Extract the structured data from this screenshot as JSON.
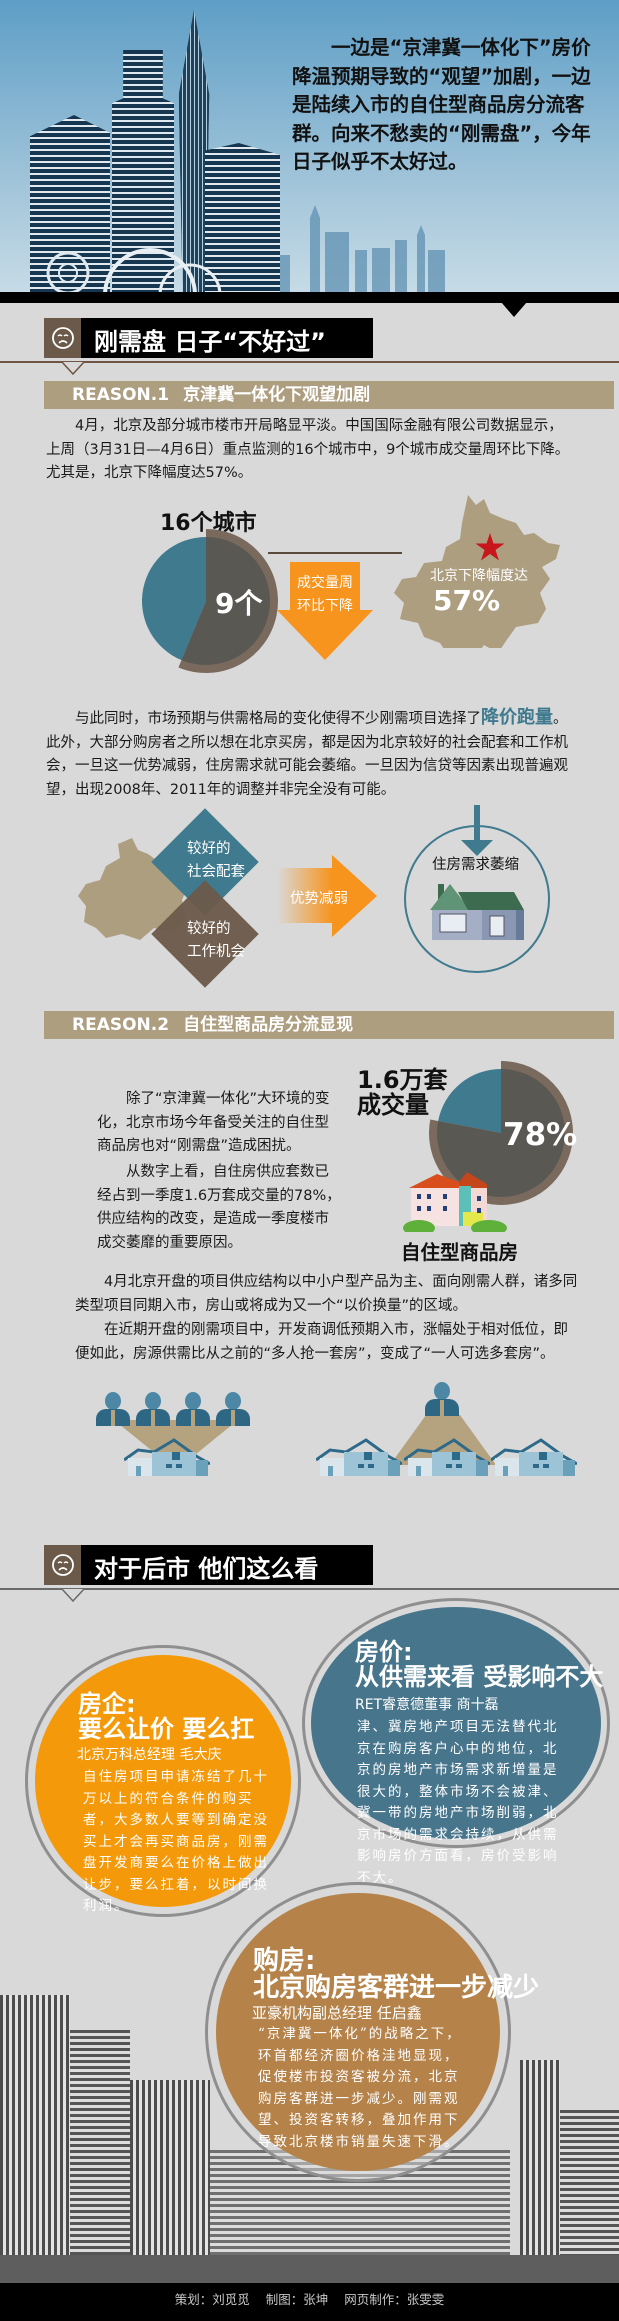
{
  "header": {
    "intro": "一边是“京津冀一体化下”房价降温预期导致的“观望”加剧，一边是陆续入市的自住型商品房分流客群。向来不愁卖的“刚需盘”，今年日子似乎不太好过。"
  },
  "section1": {
    "title": "刚需盘 日子“不好过”",
    "icon": "sad-face-icon"
  },
  "reason1": {
    "label": "REASON.1",
    "title": "京津冀一体化下观望加剧",
    "paragraph": "4月，北京及部分城市楼市开局略显平淡。中国国际金融有限公司数据显示，上周（3月31日—4月6日）重点监测的16个城市中，9个城市成交量周环比下降。尤其是，北京下降幅度达57%。",
    "pie": {
      "title": "16个城市",
      "label": "9个",
      "value": 9,
      "total": 16
    },
    "arrow_text": [
      "成交量周",
      "环比下降"
    ],
    "map": {
      "label": "北京下降幅度达",
      "value": "57%"
    },
    "paragraph2": {
      "before": "与此同时，市场预期与供需格局的变化使得不少刚需项目选择了",
      "highlight": "降价跑量",
      "after": "。此外，大部分购房者之所以想在北京买房，都是因为北京较好的社会配套和工作机会，一旦这一优势减弱，住房需求就可能会萎缩。一旦因为信贷等因素出现普遍观望，出现2008年、2011年的调整并非完全没有可能。"
    },
    "diagram": {
      "diamond1": [
        "较好的",
        "社会配套"
      ],
      "diamond2": [
        "较好的",
        "工作机会"
      ],
      "arrow": "优势减弱",
      "result": "住房需求萎缩"
    }
  },
  "reason2": {
    "label": "REASON.2",
    "title": "自住型商品房分流显现",
    "paragraph_a": "除了“京津冀一体化”大环境的变化，北京市场今年备受关注的自住型商品房也对“刚需盘”造成困扰。",
    "paragraph_b": "从数字上看，自住房供应套数已经占到一季度1.6万套成交量的78%，供应结构的改变，是造成一季度楼市成交萎靡的重要原因。",
    "pie": {
      "title": [
        "1.6万套",
        "成交量"
      ],
      "label": "78%",
      "percent": 78
    },
    "building_label": "自住型商品房",
    "paragraph_c": "4月北京开盘的项目供应结构以中小户型产品为主、面向刚需人群，诸多同类型项目同期入市，房山或将成为又一个“以价换量”的区域。",
    "paragraph_d": "在近期开盘的刚需项目中，开发商调低预期入市，涨幅处于相对低位，即便如此，房源供需比从之前的“多人抢一套房”，变成了“一人可选多套房”。"
  },
  "section2": {
    "title": "对于后市 他们这么看",
    "icon": "sad-face-icon"
  },
  "opinions": [
    {
      "title_a": "房企:",
      "title_b": "要么让价 要么扛",
      "source": "北京万科总经理 毛大庆",
      "body": "自住房项目申请冻结了几十万以上的符合条件的购买者，大多数人要等到确定没买上才会再买商品房，刚需盘开发商要么在价格上做出让步，要么扛着，以时间换利润。",
      "color": "#f49a0a"
    },
    {
      "title_a": "房价:",
      "title_b": "从供需来看 受影响不大",
      "source": "RET睿意德董事 商十磊",
      "body": "津、冀房地产项目无法替代北京在购房客户心中的地位，北京的房地产市场需求新增量是很大的，整体市场不会被津、冀一带的房地产市场削弱，北京市场的需求会持续，从供需影响房价方面看，房价受影响不大。",
      "color": "#47758c"
    },
    {
      "title_a": "购房:",
      "title_b": "北京购房客群进一步减少",
      "source": "亚豪机构副总经理 任启鑫",
      "body": "“京津冀一体化”的战略之下，环首都经济圈价格洼地显现，促使楼市投资客被分流，北京购房客群进一步减少。刚需观望、投资客转移，叠加作用下导致北京楼市销量失速下滑。",
      "color": "#b5834a"
    }
  ],
  "footer": {
    "planner": "策划：刘觅觅",
    "graphics": "制图：张坤",
    "web": "网页制作：张雯雯"
  },
  "colors": {
    "teal": "#3f7a8e",
    "dark_grey": "#5a5853",
    "tan": "#ad9e80",
    "orange": "#f7941d",
    "brown": "#6b5a4a"
  }
}
